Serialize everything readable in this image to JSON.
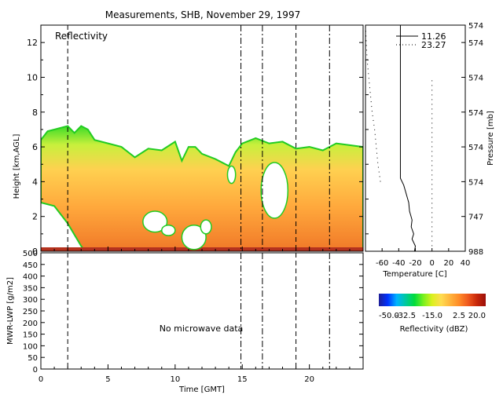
{
  "title": "Measurements, SHB, November 29, 1997",
  "chart_data": [
    {
      "id": "reflectivity",
      "type": "heatmap",
      "panel_label": "Reflectivity",
      "ylabel": "Height [km,AGL]",
      "xlim": [
        0,
        24
      ],
      "ylim": [
        0,
        13
      ],
      "yticks": [
        0,
        2,
        4,
        6,
        8,
        10,
        12
      ],
      "y2label": "Pressure [mb]",
      "pressure_tick_labels": [
        "988",
        "747",
        "574",
        "574",
        "574",
        "574",
        "574",
        "574"
      ],
      "marker_lines": [
        {
          "x": 2.0,
          "style": "dashed"
        },
        {
          "x": 14.9,
          "style": "dashdot"
        },
        {
          "x": 16.5,
          "style": "dashdot"
        },
        {
          "x": 19.0,
          "style": "dashed"
        },
        {
          "x": 21.5,
          "style": "dashdot"
        }
      ],
      "cloud_top_km": [
        [
          0,
          6.4
        ],
        [
          0.5,
          6.9
        ],
        [
          1,
          7.0
        ],
        [
          1.5,
          7.1
        ],
        [
          2,
          7.2
        ],
        [
          2.5,
          6.8
        ],
        [
          3,
          7.2
        ],
        [
          3.5,
          7.0
        ],
        [
          4,
          6.4
        ],
        [
          5,
          6.2
        ],
        [
          6,
          6.0
        ],
        [
          7,
          5.4
        ],
        [
          8,
          5.9
        ],
        [
          9,
          5.8
        ],
        [
          10,
          6.3
        ],
        [
          10.5,
          5.2
        ],
        [
          11,
          6.0
        ],
        [
          11.5,
          6.0
        ],
        [
          12,
          5.6
        ],
        [
          13,
          5.3
        ],
        [
          14,
          4.9
        ],
        [
          14.5,
          5.7
        ],
        [
          15,
          6.2
        ],
        [
          16,
          6.5
        ],
        [
          17,
          6.2
        ],
        [
          18,
          6.3
        ],
        [
          19,
          5.9
        ],
        [
          20,
          6.0
        ],
        [
          21,
          5.8
        ],
        [
          22,
          6.2
        ],
        [
          23,
          6.1
        ],
        [
          24,
          6.0
        ]
      ],
      "cloud_base_km": [
        [
          0,
          2.8
        ],
        [
          1,
          2.6
        ],
        [
          2,
          1.6
        ],
        [
          3,
          0.3
        ],
        [
          3.3,
          0.0
        ],
        [
          24,
          0.0
        ]
      ],
      "colorbar": {
        "label": "Reflectivity (dBZ)",
        "tick_labels": [
          "-50.0",
          "-32.5",
          "-15.0",
          "2.5",
          "20.0"
        ],
        "colors": [
          "#1e1e96",
          "#0032ff",
          "#00b4ff",
          "#00c8a0",
          "#00dc3c",
          "#78f01e",
          "#dcf01e",
          "#ffdc50",
          "#ffb43c",
          "#ff8c28",
          "#f05a1e",
          "#c8280a",
          "#9b0f0a"
        ]
      }
    },
    {
      "id": "sounding",
      "type": "line",
      "xlabel": "Temperature [C]",
      "xlim": [
        -80,
        40
      ],
      "xtick_labels": [
        "-60",
        "-40",
        "-20",
        "0",
        "20",
        "40"
      ],
      "legend": [
        {
          "name": "11.26",
          "style": "solid"
        },
        {
          "name": "23.27",
          "style": "dotted"
        }
      ],
      "series": [
        {
          "name": "11.26",
          "points": [
            [
              -21,
              0
            ],
            [
              -20,
              0.3
            ],
            [
              -24,
              0.7
            ],
            [
              -22,
              1.0
            ],
            [
              -25,
              1.4
            ],
            [
              -24,
              1.8
            ],
            [
              -27,
              2.3
            ],
            [
              -28,
              2.8
            ],
            [
              -31,
              3.3
            ],
            [
              -34,
              3.8
            ],
            [
              -38,
              4.2
            ],
            [
              -38,
              5
            ],
            [
              -38,
              8
            ],
            [
              -38,
              11
            ],
            [
              -38,
              13
            ]
          ]
        },
        {
          "name": "23.27",
          "points": [
            [
              -62,
              4.0
            ],
            [
              -65,
              5.0
            ],
            [
              -67,
              6.0
            ],
            [
              -69,
              7.0
            ],
            [
              -72,
              8.0
            ],
            [
              -74,
              9.0
            ],
            [
              -76,
              10.0
            ],
            [
              -78,
              11.0
            ],
            [
              -79,
              12.0
            ],
            [
              -80,
              13.0
            ]
          ]
        },
        {
          "name": "zero-line",
          "points": [
            [
              0,
              0.3
            ],
            [
              0,
              10
            ]
          ]
        }
      ]
    },
    {
      "id": "mwr",
      "type": "line",
      "ylabel": "MWR-LWP [g/m2]",
      "xlabel": "Time [GMT]",
      "xlim": [
        0,
        24
      ],
      "ylim": [
        0,
        500
      ],
      "yticks": [
        0,
        50,
        100,
        150,
        200,
        250,
        300,
        350,
        400,
        450,
        500
      ],
      "xticks": [
        0,
        5,
        10,
        15,
        20
      ],
      "annotation": "No microwave data",
      "series": []
    }
  ]
}
